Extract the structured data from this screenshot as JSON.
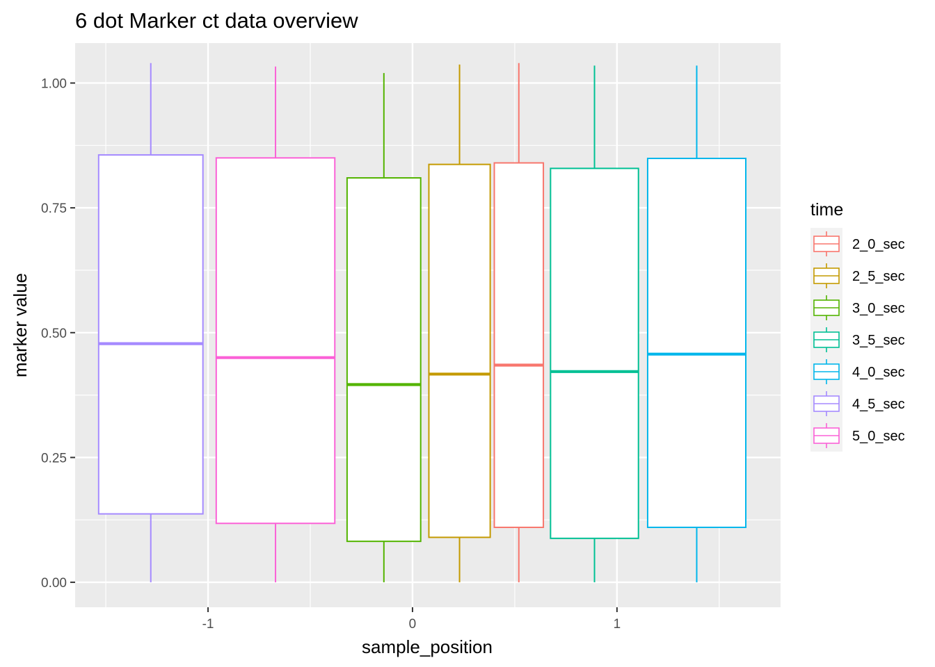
{
  "chart_data": {
    "type": "boxplot",
    "title": "6 dot Marker ct data overview",
    "xlabel": "sample_position",
    "ylabel": "marker value",
    "x_ticks": [
      "-1",
      "0",
      "1"
    ],
    "y_ticks": [
      "0.00",
      "0.25",
      "0.50",
      "0.75",
      "1.00"
    ],
    "xlim": [
      -1.65,
      1.8
    ],
    "ylim": [
      -0.05,
      1.08
    ],
    "grid": true,
    "background": "#ebebeb",
    "legend": {
      "title": "time",
      "position": "right"
    },
    "series": [
      {
        "name": "2_0_sec",
        "color": "#F8766D",
        "x_center": 0.52,
        "x_width": 0.24,
        "min": 0.0,
        "q1": 0.11,
        "median": 0.435,
        "q3": 0.84,
        "max": 1.04
      },
      {
        "name": "2_5_sec",
        "color": "#C49A00",
        "x_center": 0.23,
        "x_width": 0.3,
        "min": 0.0,
        "q1": 0.09,
        "median": 0.417,
        "q3": 0.837,
        "max": 1.037
      },
      {
        "name": "3_0_sec",
        "color": "#53B400",
        "x_center": -0.14,
        "x_width": 0.36,
        "min": 0.0,
        "q1": 0.082,
        "median": 0.396,
        "q3": 0.81,
        "max": 1.02
      },
      {
        "name": "3_5_sec",
        "color": "#00C094",
        "x_center": 0.89,
        "x_width": 0.43,
        "min": 0.0,
        "q1": 0.088,
        "median": 0.422,
        "q3": 0.829,
        "max": 1.035
      },
      {
        "name": "4_0_sec",
        "color": "#00B6EB",
        "x_center": 1.39,
        "x_width": 0.48,
        "min": 0.0,
        "q1": 0.11,
        "median": 0.457,
        "q3": 0.849,
        "max": 1.035
      },
      {
        "name": "4_5_sec",
        "color": "#A58AFF",
        "x_center": -1.28,
        "x_width": 0.51,
        "min": 0.0,
        "q1": 0.137,
        "median": 0.478,
        "q3": 0.856,
        "max": 1.04
      },
      {
        "name": "5_0_sec",
        "color": "#FB61D7",
        "x_center": -0.67,
        "x_width": 0.58,
        "min": 0.0,
        "q1": 0.118,
        "median": 0.45,
        "q3": 0.85,
        "max": 1.033
      }
    ]
  }
}
